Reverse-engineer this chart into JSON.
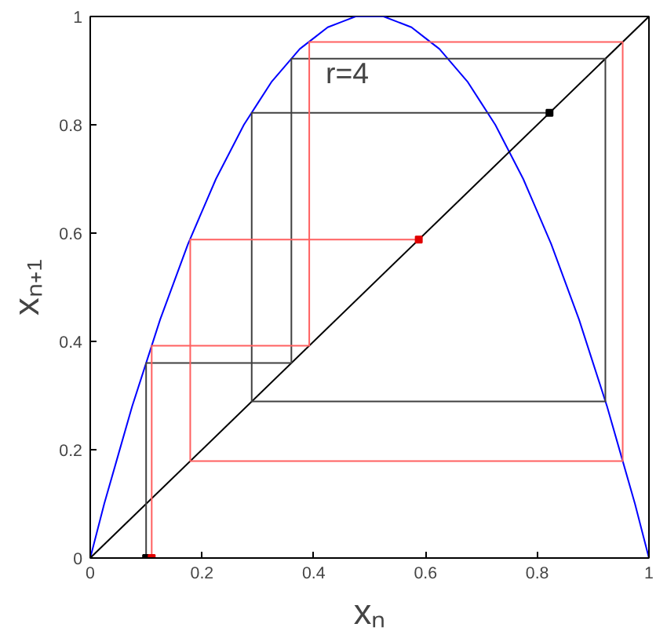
{
  "chart_data": {
    "type": "line",
    "xlabel": "xₙ",
    "ylabel": "xₙ₊₁",
    "annotations": [
      "r=4"
    ],
    "xlim": [
      0,
      1
    ],
    "ylim": [
      0,
      1
    ],
    "xticks": [
      0,
      0.2,
      0.4,
      0.6,
      0.8,
      1
    ],
    "yticks": [
      0,
      0.2,
      0.4,
      0.6,
      0.8,
      1
    ],
    "grid": false,
    "series": [
      {
        "color": "#0000ff",
        "x": [
          0,
          0.025,
          0.05,
          0.075,
          0.1,
          0.125,
          0.15,
          0.175,
          0.2,
          0.225,
          0.25,
          0.275,
          0.3,
          0.325,
          0.35,
          0.375,
          0.4,
          0.425,
          0.45,
          0.475,
          0.5,
          0.525,
          0.55,
          0.575,
          0.6,
          0.625,
          0.65,
          0.675,
          0.7,
          0.725,
          0.75,
          0.775,
          0.8,
          0.825,
          0.85,
          0.875,
          0.9,
          0.925,
          0.95,
          0.975,
          1
        ],
        "values": [
          0,
          0.1,
          0.19,
          0.28,
          0.36,
          0.44,
          0.51,
          0.58,
          0.64,
          0.7,
          0.75,
          0.8,
          0.84,
          0.88,
          0.91,
          0.94,
          0.96,
          0.98,
          0.99,
          1,
          1,
          1,
          0.99,
          0.98,
          0.96,
          0.94,
          0.91,
          0.88,
          0.84,
          0.8,
          0.75,
          0.7,
          0.64,
          0.58,
          0.51,
          0.44,
          0.36,
          0.28,
          0.19,
          0.1,
          0
        ]
      },
      {
        "color": "#000000",
        "x": [
          0,
          1
        ],
        "values": [
          0,
          1
        ]
      },
      {
        "color": "#404040",
        "x": [
          0.1,
          0.1,
          0.36,
          0.36,
          0.922,
          0.922,
          0.289,
          0.289,
          0.822
        ],
        "values": [
          0,
          0.36,
          0.36,
          0.922,
          0.922,
          0.289,
          0.289,
          0.822,
          0.822
        ]
      },
      {
        "color": "#ff6060",
        "x": [
          0.11,
          0.11,
          0.392,
          0.392,
          0.953,
          0.953,
          0.179,
          0.179,
          0.588
        ],
        "values": [
          0,
          0.392,
          0.392,
          0.953,
          0.953,
          0.179,
          0.179,
          0.588,
          0.588
        ]
      },
      {
        "type": "scatter",
        "marker": "square",
        "color": "#000000",
        "x": [
          0.1,
          0.822
        ],
        "values": [
          0,
          0.822
        ]
      },
      {
        "type": "scatter",
        "marker": "square",
        "color": "#e00000",
        "x": [
          0.11,
          0.588
        ],
        "values": [
          0,
          0.588
        ]
      }
    ]
  }
}
